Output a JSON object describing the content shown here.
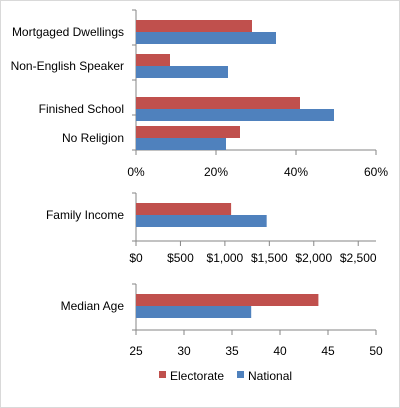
{
  "colors": {
    "electorate": "#c0504d",
    "national": "#4f81bd",
    "axis": "#868686",
    "frame": "#d9d9d9"
  },
  "chart_data": [
    {
      "type": "bar",
      "orientation": "horizontal",
      "categories": [
        "Mortgaged Dwellings",
        "Non-English Speaker",
        "Finished School",
        "No Religion"
      ],
      "series": [
        {
          "name": "Electorate",
          "values": [
            29,
            8.5,
            41,
            26
          ]
        },
        {
          "name": "National",
          "values": [
            35,
            23,
            49.5,
            22.5
          ]
        }
      ],
      "xlim": [
        0,
        60
      ],
      "ticks": [
        0,
        20,
        40,
        60
      ],
      "tick_labels": [
        "0%",
        "20%",
        "40%",
        "60%"
      ]
    },
    {
      "type": "bar",
      "orientation": "horizontal",
      "categories": [
        "Family Income"
      ],
      "series": [
        {
          "name": "Electorate",
          "values": [
            1070
          ]
        },
        {
          "name": "National",
          "values": [
            1470
          ]
        }
      ],
      "xlim": [
        0,
        2700
      ],
      "ticks": [
        0,
        500,
        1000,
        1500,
        2000,
        2500
      ],
      "tick_labels": [
        "$0",
        "$500",
        "$1,000",
        "$1,500",
        "$2,000",
        "$2,500"
      ]
    },
    {
      "type": "bar",
      "orientation": "horizontal",
      "categories": [
        "Median Age"
      ],
      "series": [
        {
          "name": "Electorate",
          "values": [
            44
          ]
        },
        {
          "name": "National",
          "values": [
            37
          ]
        }
      ],
      "xlim": [
        25,
        50
      ],
      "ticks": [
        25,
        30,
        35,
        40,
        45,
        50
      ],
      "tick_labels": [
        "25",
        "30",
        "35",
        "40",
        "45",
        "50"
      ]
    }
  ],
  "legend": {
    "position": "bottom",
    "items": [
      {
        "label": "Electorate"
      },
      {
        "label": "National"
      }
    ]
  }
}
